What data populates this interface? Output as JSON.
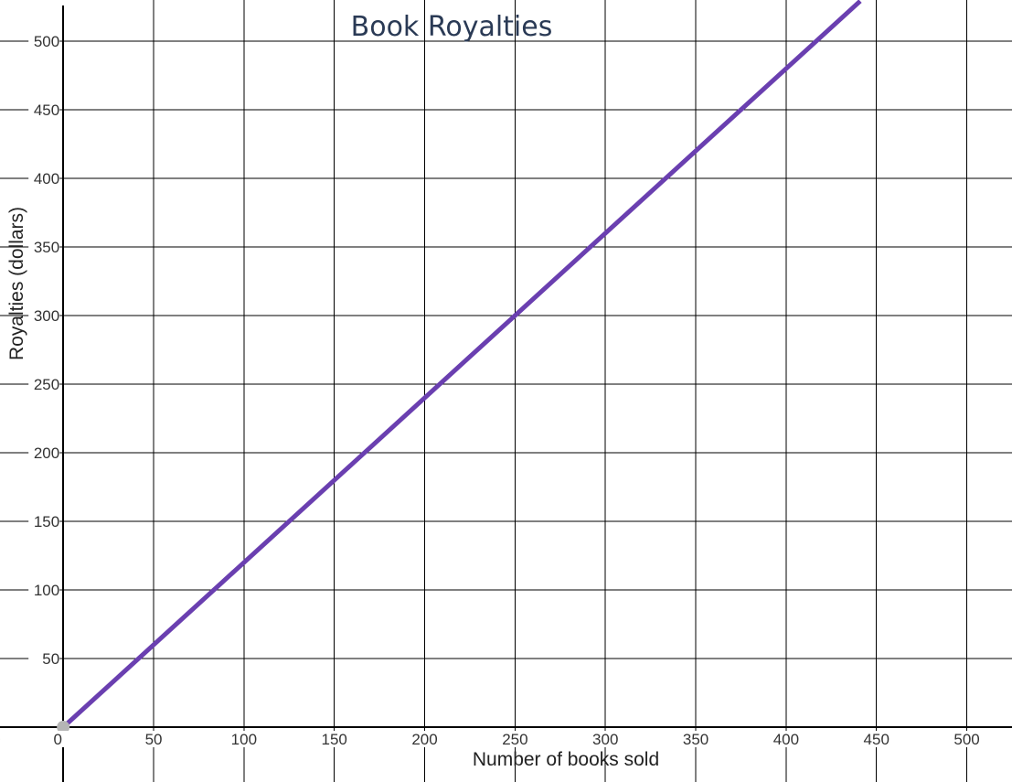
{
  "chart_data": {
    "type": "line",
    "title": "Book Royalties",
    "xlabel": "Number of books sold",
    "ylabel": "Royalties (dollars)",
    "xlim": [
      -35,
      525
    ],
    "ylim": [
      -40,
      530
    ],
    "x_ticks": [
      0,
      50,
      100,
      150,
      200,
      250,
      300,
      350,
      400,
      450,
      500
    ],
    "y_ticks": [
      50,
      100,
      150,
      200,
      250,
      300,
      350,
      400,
      450,
      500
    ],
    "grid": true,
    "series": [
      {
        "color": "#6a3fb0",
        "x": [
          0,
          441
        ],
        "y": [
          0,
          529.2
        ]
      }
    ],
    "points": [
      {
        "x": 0,
        "y": 0,
        "color": "#b5b5b5"
      }
    ],
    "partial_tick_label": "0"
  }
}
